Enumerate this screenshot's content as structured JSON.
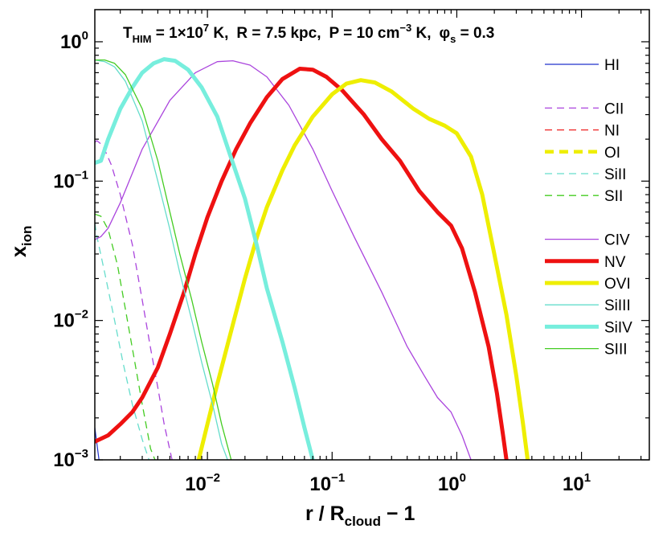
{
  "chart_data": {
    "type": "line",
    "title": {
      "T_sym": "T",
      "T_sub": "HIM",
      "T_mid": " = 1×10",
      "T_exp": "7",
      "T_unit": " K,",
      "R_text": "R = 7.5 kpc,",
      "P_pre": "P = 10 cm",
      "P_exp": "−3",
      "P_post": " K,",
      "phi_sym": "φ",
      "phi_sub": "s",
      "phi_post": " = 0.3"
    },
    "xlabel": {
      "main": "r / R",
      "sub": "cloud",
      "tail": " − 1"
    },
    "ylabel": {
      "main": "x",
      "sub": "ion"
    },
    "xscale": "log",
    "yscale": "log",
    "xlim": [
      0.00125,
      35
    ],
    "ylim": [
      0.001,
      1.7
    ],
    "xticks": [
      {
        "value": 0.01,
        "base": "10",
        "exp": "−2"
      },
      {
        "value": 0.1,
        "base": "10",
        "exp": "−1"
      },
      {
        "value": 1,
        "base": "10",
        "exp": "0"
      },
      {
        "value": 10,
        "base": "10",
        "exp": "1"
      }
    ],
    "yticks": [
      {
        "value": 0.001,
        "base": "10",
        "exp": "−3"
      },
      {
        "value": 0.01,
        "base": "10",
        "exp": "−2"
      },
      {
        "value": 0.1,
        "base": "10",
        "exp": "−1"
      },
      {
        "value": 1,
        "base": "10",
        "exp": "0"
      }
    ],
    "legend_position": "top-right",
    "series": [
      {
        "name": "HI",
        "color": "#2233cc",
        "width": 1.2,
        "dash": "",
        "legend_slot": 0,
        "points": [
          [
            0.00125,
            0.0017
          ],
          [
            0.00135,
            0.001
          ]
        ]
      },
      {
        "name": "CII",
        "color": "#aa44dd",
        "width": 1.3,
        "dash": "9,6",
        "legend_slot": 2,
        "points": [
          [
            0.00125,
            0.19
          ],
          [
            0.0013,
            0.195
          ],
          [
            0.00145,
            0.18
          ],
          [
            0.0017,
            0.13
          ],
          [
            0.002,
            0.08
          ],
          [
            0.0025,
            0.035
          ],
          [
            0.003,
            0.014
          ],
          [
            0.0035,
            0.0063
          ],
          [
            0.004,
            0.0033
          ],
          [
            0.0045,
            0.0018
          ],
          [
            0.0052,
            0.001
          ]
        ]
      },
      {
        "name": "NI",
        "color": "#ee2222",
        "width": 1.3,
        "dash": "9,6",
        "legend_slot": 3,
        "points": []
      },
      {
        "name": "OI",
        "color": "#eeee00",
        "width": 4.5,
        "dash": "11,7",
        "legend_slot": 4,
        "points": []
      },
      {
        "name": "SiII",
        "color": "#66ddcc",
        "width": 1.3,
        "dash": "9,6",
        "legend_slot": 5,
        "points": [
          [
            0.00125,
            0.05
          ],
          [
            0.0013,
            0.04
          ],
          [
            0.0015,
            0.022
          ],
          [
            0.0018,
            0.01
          ],
          [
            0.0021,
            0.005
          ],
          [
            0.0025,
            0.0025
          ],
          [
            0.003,
            0.0014
          ],
          [
            0.0034,
            0.001
          ]
        ]
      },
      {
        "name": "SII",
        "color": "#44cc22",
        "width": 1.3,
        "dash": "9,6",
        "legend_slot": 6,
        "points": [
          [
            0.00125,
            0.058
          ],
          [
            0.0014,
            0.056
          ],
          [
            0.0016,
            0.045
          ],
          [
            0.0019,
            0.025
          ],
          [
            0.0022,
            0.012
          ],
          [
            0.0026,
            0.0052
          ],
          [
            0.003,
            0.0025
          ],
          [
            0.0035,
            0.0012
          ],
          [
            0.0038,
            0.001
          ]
        ]
      },
      {
        "name": "CIV",
        "color": "#aa44dd",
        "width": 1.3,
        "dash": "",
        "legend_slot": 8,
        "points": [
          [
            0.00125,
            0.038
          ],
          [
            0.0014,
            0.04
          ],
          [
            0.0016,
            0.046
          ],
          [
            0.002,
            0.07
          ],
          [
            0.003,
            0.17
          ],
          [
            0.005,
            0.38
          ],
          [
            0.008,
            0.6
          ],
          [
            0.012,
            0.72
          ],
          [
            0.016,
            0.73
          ],
          [
            0.022,
            0.68
          ],
          [
            0.03,
            0.56
          ],
          [
            0.045,
            0.35
          ],
          [
            0.07,
            0.17
          ],
          [
            0.1,
            0.085
          ],
          [
            0.15,
            0.04
          ],
          [
            0.25,
            0.016
          ],
          [
            0.4,
            0.0065
          ],
          [
            0.55,
            0.004
          ],
          [
            0.7,
            0.0028
          ],
          [
            0.9,
            0.0022
          ],
          [
            1.1,
            0.0015
          ],
          [
            1.3,
            0.001
          ]
        ]
      },
      {
        "name": "NV",
        "color": "#ee1111",
        "width": 5,
        "dash": "",
        "legend_slot": 9,
        "points": [
          [
            0.00125,
            0.00135
          ],
          [
            0.0016,
            0.0015
          ],
          [
            0.002,
            0.0018
          ],
          [
            0.0025,
            0.0022
          ],
          [
            0.003,
            0.0028
          ],
          [
            0.004,
            0.0046
          ],
          [
            0.005,
            0.008
          ],
          [
            0.0065,
            0.016
          ],
          [
            0.008,
            0.03
          ],
          [
            0.01,
            0.055
          ],
          [
            0.013,
            0.1
          ],
          [
            0.017,
            0.17
          ],
          [
            0.022,
            0.26
          ],
          [
            0.03,
            0.4
          ],
          [
            0.04,
            0.54
          ],
          [
            0.055,
            0.64
          ],
          [
            0.07,
            0.63
          ],
          [
            0.09,
            0.56
          ],
          [
            0.12,
            0.45
          ],
          [
            0.18,
            0.3
          ],
          [
            0.25,
            0.2
          ],
          [
            0.35,
            0.14
          ],
          [
            0.5,
            0.085
          ],
          [
            0.7,
            0.06
          ],
          [
            0.9,
            0.048
          ],
          [
            1.1,
            0.033
          ],
          [
            1.4,
            0.016
          ],
          [
            1.8,
            0.0065
          ],
          [
            2.1,
            0.003
          ],
          [
            2.35,
            0.0015
          ],
          [
            2.5,
            0.001
          ]
        ]
      },
      {
        "name": "OVI",
        "color": "#eeee00",
        "width": 5,
        "dash": "",
        "legend_slot": 10,
        "points": [
          [
            0.0085,
            0.001
          ],
          [
            0.01,
            0.0018
          ],
          [
            0.012,
            0.0035
          ],
          [
            0.015,
            0.0075
          ],
          [
            0.02,
            0.02
          ],
          [
            0.025,
            0.04
          ],
          [
            0.03,
            0.065
          ],
          [
            0.04,
            0.12
          ],
          [
            0.05,
            0.18
          ],
          [
            0.07,
            0.29
          ],
          [
            0.1,
            0.42
          ],
          [
            0.13,
            0.5
          ],
          [
            0.17,
            0.53
          ],
          [
            0.22,
            0.51
          ],
          [
            0.3,
            0.44
          ],
          [
            0.45,
            0.33
          ],
          [
            0.6,
            0.28
          ],
          [
            0.8,
            0.25
          ],
          [
            1.0,
            0.22
          ],
          [
            1.3,
            0.15
          ],
          [
            1.6,
            0.08
          ],
          [
            2.0,
            0.03
          ],
          [
            2.5,
            0.011
          ],
          [
            3.0,
            0.004
          ],
          [
            3.4,
            0.0018
          ],
          [
            3.7,
            0.001
          ]
        ]
      },
      {
        "name": "SiIII",
        "color": "#66ddcc",
        "width": 1.3,
        "dash": "",
        "legend_slot": 11,
        "points": [
          [
            0.00125,
            0.74
          ],
          [
            0.0015,
            0.72
          ],
          [
            0.0018,
            0.66
          ],
          [
            0.0022,
            0.52
          ],
          [
            0.003,
            0.27
          ],
          [
            0.004,
            0.1
          ],
          [
            0.005,
            0.045
          ],
          [
            0.006,
            0.022
          ],
          [
            0.0075,
            0.01
          ],
          [
            0.009,
            0.005
          ],
          [
            0.011,
            0.0025
          ],
          [
            0.013,
            0.0013
          ],
          [
            0.0145,
            0.001
          ]
        ]
      },
      {
        "name": "SiIV",
        "color": "#77eedd",
        "width": 5,
        "dash": "",
        "legend_slot": 12,
        "points": [
          [
            0.00125,
            0.135
          ],
          [
            0.0014,
            0.14
          ],
          [
            0.0016,
            0.2
          ],
          [
            0.002,
            0.33
          ],
          [
            0.0025,
            0.47
          ],
          [
            0.003,
            0.6
          ],
          [
            0.0037,
            0.7
          ],
          [
            0.0045,
            0.75
          ],
          [
            0.0055,
            0.73
          ],
          [
            0.007,
            0.63
          ],
          [
            0.009,
            0.47
          ],
          [
            0.012,
            0.29
          ],
          [
            0.015,
            0.16
          ],
          [
            0.02,
            0.075
          ],
          [
            0.025,
            0.034
          ],
          [
            0.03,
            0.017
          ],
          [
            0.04,
            0.007
          ],
          [
            0.05,
            0.0033
          ],
          [
            0.06,
            0.0017
          ],
          [
            0.07,
            0.001
          ]
        ]
      },
      {
        "name": "SIII",
        "color": "#44cc22",
        "width": 1.3,
        "dash": "",
        "legend_slot": 13,
        "points": [
          [
            0.00125,
            0.74
          ],
          [
            0.0015,
            0.74
          ],
          [
            0.0018,
            0.7
          ],
          [
            0.0022,
            0.58
          ],
          [
            0.003,
            0.33
          ],
          [
            0.004,
            0.14
          ],
          [
            0.005,
            0.06
          ],
          [
            0.006,
            0.03
          ],
          [
            0.0075,
            0.014
          ],
          [
            0.009,
            0.007
          ],
          [
            0.011,
            0.0035
          ],
          [
            0.013,
            0.0018
          ],
          [
            0.0155,
            0.001
          ]
        ]
      }
    ]
  }
}
